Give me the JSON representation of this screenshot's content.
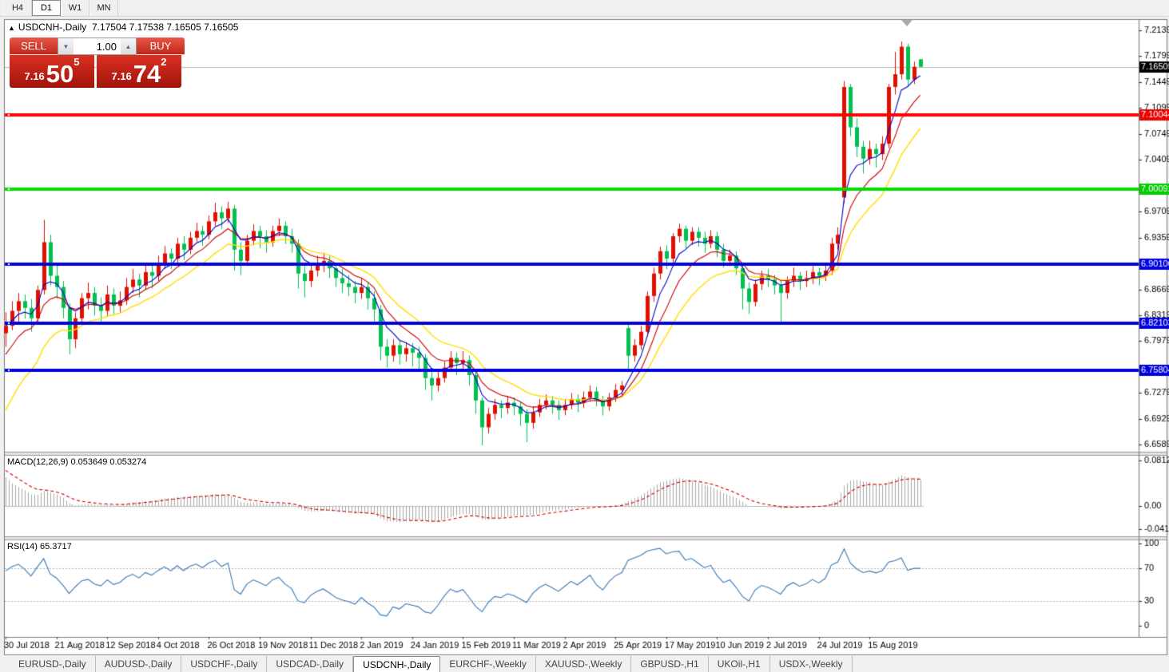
{
  "toolbar": {
    "timeframes": [
      {
        "label": "H4",
        "active": false
      },
      {
        "label": "D1",
        "active": true
      },
      {
        "label": "W1",
        "active": false
      },
      {
        "label": "MN",
        "active": false
      }
    ]
  },
  "chart": {
    "collapse_arrow": "▲",
    "title_symbol": "USDCNH-,Daily",
    "title_ohlc": "7.17504 7.17538 7.16505 7.16505",
    "trade_panel": {
      "sell_label": "SELL",
      "buy_label": "BUY",
      "volume": "1.00",
      "spin_down_icon": "▼",
      "spin_up_icon": "▲",
      "sell": {
        "prefix": "7.16",
        "big": "50",
        "sup": "5"
      },
      "buy": {
        "prefix": "7.16",
        "big": "74",
        "sup": "2"
      }
    },
    "macd_label": "MACD(12,26,9) 0.053649 0.053274",
    "rsi_label": "RSI(14) 65.3717",
    "icons": {
      "scroll_marker": "triangle-down"
    }
  },
  "chart_data": {
    "type": "candlestick",
    "symbol": "USDCNH-",
    "timeframe": "Daily",
    "ylim": [
      6.6493,
      7.2278
    ],
    "y_ticks": [
      "7.21390",
      "7.17990",
      "7.14490",
      "7.10990",
      "7.07490",
      "7.04090",
      "6.97090",
      "6.93590",
      "6.86690",
      "6.83190",
      "6.79790",
      "6.72790",
      "6.69290",
      "6.65890"
    ],
    "badges": [
      {
        "price": 7.16505,
        "label": "7.16505",
        "color": "#000000"
      },
      {
        "price": 7.10044,
        "label": "7.10044",
        "color": "#ee0000"
      },
      {
        "price": 7.00092,
        "label": "7.00092",
        "color": "#00cc00"
      },
      {
        "price": 6.901,
        "label": "6.90100",
        "color": "#0000dd"
      },
      {
        "price": 6.82103,
        "label": "6.82103",
        "color": "#0000dd"
      },
      {
        "price": 6.75804,
        "label": "6.75804",
        "color": "#0000dd"
      }
    ],
    "hlines": [
      {
        "price": 7.10044,
        "color": "#ff0000",
        "width": 4
      },
      {
        "price": 7.00092,
        "color": "#00e000",
        "width": 4
      },
      {
        "price": 6.901,
        "color": "#0000e0",
        "width": 4
      },
      {
        "price": 6.82103,
        "color": "#0000e0",
        "width": 4
      },
      {
        "price": 6.75804,
        "color": "#0000e0",
        "width": 4
      }
    ],
    "current_price": 7.16505,
    "x_labels": [
      "30 Jul 2018",
      "21 Aug 2018",
      "12 Sep 2018",
      "4 Oct 2018",
      "26 Oct 2018",
      "19 Nov 2018",
      "11 Dec 2018",
      "2 Jan 2019",
      "24 Jan 2019",
      "15 Feb 2019",
      "11 Mar 2019",
      "2 Apr 2019",
      "25 Apr 2019",
      "17 May 2019",
      "10 Jun 2019",
      "2 Jul 2019",
      "24 Jul 2019",
      "15 Aug 2019"
    ],
    "x_label_step": 8,
    "colors": {
      "bull": "#e01000",
      "bear": "#00c050",
      "ma_fast": "#0000cc",
      "ma_mid": "#cc0000",
      "ma_slow": "#ffe000",
      "hist": "#a8a8a8",
      "signal": "#cc0000",
      "rsi": "#3a78b5",
      "current_line": "#b8b8b8"
    },
    "indicators": {
      "macd": {
        "name": "MACD",
        "params": "12,26,9",
        "main_value": 0.053649,
        "signal_value": 0.053274,
        "y_ticks": [
          "0.081265",
          "0.00",
          "-0.041412"
        ],
        "ylim": [
          -0.0542,
          0.0898
        ]
      },
      "rsi": {
        "name": "RSI",
        "params": "14",
        "value": 65.3717,
        "y_ticks": [
          "100",
          "70",
          "30",
          "0"
        ],
        "levels": [
          70,
          30
        ]
      }
    },
    "ohlc": [
      [
        6.808,
        6.836,
        6.79,
        6.818
      ],
      [
        6.818,
        6.851,
        6.812,
        6.838
      ],
      [
        6.838,
        6.862,
        6.822,
        6.851
      ],
      [
        6.851,
        6.86,
        6.828,
        6.842
      ],
      [
        6.842,
        6.854,
        6.81,
        6.828
      ],
      [
        6.828,
        6.872,
        6.824,
        6.866
      ],
      [
        6.866,
        6.96,
        6.86,
        6.93
      ],
      [
        6.93,
        6.94,
        6.872,
        6.885
      ],
      [
        6.885,
        6.902,
        6.855,
        6.87
      ],
      [
        6.87,
        6.878,
        6.828,
        6.842
      ],
      [
        6.842,
        6.848,
        6.78,
        6.8
      ],
      [
        6.8,
        6.836,
        6.788,
        6.828
      ],
      [
        6.828,
        6.862,
        6.82,
        6.855
      ],
      [
        6.855,
        6.876,
        6.84,
        6.862
      ],
      [
        6.862,
        6.87,
        6.832,
        6.845
      ],
      [
        6.845,
        6.856,
        6.822,
        6.838
      ],
      [
        6.838,
        6.872,
        6.83,
        6.86
      ],
      [
        6.86,
        6.868,
        6.834,
        6.845
      ],
      [
        6.845,
        6.864,
        6.836,
        6.852
      ],
      [
        6.852,
        6.882,
        6.846,
        6.87
      ],
      [
        6.87,
        6.894,
        6.862,
        6.88
      ],
      [
        6.88,
        6.888,
        6.856,
        6.872
      ],
      [
        6.872,
        6.902,
        6.866,
        6.89
      ],
      [
        6.89,
        6.9,
        6.868,
        6.885
      ],
      [
        6.885,
        6.912,
        6.878,
        6.9
      ],
      [
        6.9,
        6.925,
        6.894,
        6.915
      ],
      [
        6.915,
        6.922,
        6.894,
        6.908
      ],
      [
        6.908,
        6.936,
        6.902,
        6.928
      ],
      [
        6.928,
        6.938,
        6.906,
        6.92
      ],
      [
        6.92,
        6.944,
        6.914,
        6.936
      ],
      [
        6.936,
        6.956,
        6.93,
        6.945
      ],
      [
        6.945,
        6.952,
        6.925,
        6.94
      ],
      [
        6.94,
        6.966,
        6.934,
        6.958
      ],
      [
        6.958,
        6.983,
        6.952,
        6.97
      ],
      [
        6.97,
        6.978,
        6.948,
        6.962
      ],
      [
        6.962,
        6.984,
        6.956,
        6.975
      ],
      [
        6.975,
        6.98,
        6.892,
        6.92
      ],
      [
        6.92,
        6.93,
        6.886,
        6.905
      ],
      [
        6.905,
        6.94,
        6.9,
        6.932
      ],
      [
        6.932,
        6.954,
        6.926,
        6.945
      ],
      [
        6.945,
        6.952,
        6.922,
        6.938
      ],
      [
        6.938,
        6.946,
        6.916,
        6.93
      ],
      [
        6.93,
        6.952,
        6.924,
        6.945
      ],
      [
        6.945,
        6.962,
        6.938,
        6.952
      ],
      [
        6.952,
        6.958,
        6.928,
        6.938
      ],
      [
        6.938,
        6.948,
        6.916,
        6.928
      ],
      [
        6.928,
        6.934,
        6.868,
        6.888
      ],
      [
        6.888,
        6.898,
        6.856,
        6.878
      ],
      [
        6.878,
        6.9,
        6.87,
        6.892
      ],
      [
        6.892,
        6.912,
        6.884,
        6.9
      ],
      [
        6.9,
        6.916,
        6.89,
        6.905
      ],
      [
        6.905,
        6.912,
        6.882,
        6.895
      ],
      [
        6.895,
        6.902,
        6.87,
        6.882
      ],
      [
        6.882,
        6.894,
        6.862,
        6.875
      ],
      [
        6.875,
        6.886,
        6.858,
        6.87
      ],
      [
        6.87,
        6.878,
        6.848,
        6.862
      ],
      [
        6.862,
        6.882,
        6.854,
        6.87
      ],
      [
        6.87,
        6.876,
        6.84,
        6.855
      ],
      [
        6.855,
        6.864,
        6.824,
        6.84
      ],
      [
        6.84,
        6.846,
        6.772,
        6.79
      ],
      [
        6.79,
        6.8,
        6.762,
        6.778
      ],
      [
        6.778,
        6.8,
        6.77,
        6.792
      ],
      [
        6.792,
        6.798,
        6.766,
        6.78
      ],
      [
        6.78,
        6.796,
        6.77,
        6.788
      ],
      [
        6.788,
        6.795,
        6.764,
        6.782
      ],
      [
        6.782,
        6.79,
        6.758,
        6.775
      ],
      [
        6.775,
        6.78,
        6.732,
        6.748
      ],
      [
        6.748,
        6.756,
        6.718,
        6.738
      ],
      [
        6.738,
        6.758,
        6.73,
        6.748
      ],
      [
        6.748,
        6.77,
        6.742,
        6.762
      ],
      [
        6.762,
        6.784,
        6.756,
        6.775
      ],
      [
        6.775,
        6.782,
        6.752,
        6.768
      ],
      [
        6.768,
        6.784,
        6.76,
        6.772
      ],
      [
        6.772,
        6.778,
        6.738,
        6.752
      ],
      [
        6.752,
        6.758,
        6.7,
        6.718
      ],
      [
        6.718,
        6.722,
        6.658,
        6.682
      ],
      [
        6.682,
        6.708,
        6.674,
        6.7
      ],
      [
        6.7,
        6.72,
        6.692,
        6.712
      ],
      [
        6.712,
        6.718,
        6.694,
        6.708
      ],
      [
        6.708,
        6.724,
        6.7,
        6.715
      ],
      [
        6.715,
        6.722,
        6.698,
        6.71
      ],
      [
        6.71,
        6.716,
        6.684,
        6.7
      ],
      [
        6.7,
        6.706,
        6.662,
        6.688
      ],
      [
        6.688,
        6.71,
        6.68,
        6.702
      ],
      [
        6.702,
        6.72,
        6.696,
        6.712
      ],
      [
        6.712,
        6.726,
        6.706,
        6.718
      ],
      [
        6.718,
        6.724,
        6.7,
        6.712
      ],
      [
        6.712,
        6.718,
        6.692,
        6.705
      ],
      [
        6.705,
        6.72,
        6.698,
        6.712
      ],
      [
        6.712,
        6.728,
        6.706,
        6.72
      ],
      [
        6.72,
        6.726,
        6.702,
        6.715
      ],
      [
        6.715,
        6.73,
        6.708,
        6.722
      ],
      [
        6.722,
        6.738,
        6.716,
        6.73
      ],
      [
        6.73,
        6.736,
        6.71,
        6.718
      ],
      [
        6.718,
        6.724,
        6.698,
        6.71
      ],
      [
        6.71,
        6.728,
        6.704,
        6.722
      ],
      [
        6.722,
        6.74,
        6.716,
        6.732
      ],
      [
        6.732,
        6.744,
        6.724,
        6.738
      ],
      [
        6.815,
        6.822,
        6.756,
        6.778
      ],
      [
        6.778,
        6.8,
        6.77,
        6.792
      ],
      [
        6.792,
        6.818,
        6.786,
        6.81
      ],
      [
        6.81,
        6.864,
        6.804,
        6.858
      ],
      [
        6.858,
        6.896,
        6.85,
        6.888
      ],
      [
        6.888,
        6.924,
        6.88,
        6.918
      ],
      [
        6.918,
        6.926,
        6.894,
        6.908
      ],
      [
        6.908,
        6.942,
        6.902,
        6.938
      ],
      [
        6.938,
        6.955,
        6.93,
        6.948
      ],
      [
        6.948,
        6.952,
        6.922,
        6.932
      ],
      [
        6.932,
        6.95,
        6.926,
        6.944
      ],
      [
        6.944,
        6.95,
        6.924,
        6.936
      ],
      [
        6.936,
        6.944,
        6.916,
        6.928
      ],
      [
        6.928,
        6.946,
        6.922,
        6.938
      ],
      [
        6.938,
        6.944,
        6.91,
        6.92
      ],
      [
        6.92,
        6.928,
        6.896,
        6.905
      ],
      [
        6.905,
        6.92,
        6.898,
        6.912
      ],
      [
        6.912,
        6.918,
        6.886,
        6.895
      ],
      [
        6.895,
        6.9,
        6.84,
        6.868
      ],
      [
        6.868,
        6.876,
        6.834,
        6.85
      ],
      [
        6.85,
        6.88,
        6.844,
        6.874
      ],
      [
        6.874,
        6.892,
        6.866,
        6.885
      ],
      [
        6.885,
        6.894,
        6.87,
        6.88
      ],
      [
        6.88,
        6.886,
        6.86,
        6.872
      ],
      [
        6.872,
        6.878,
        6.822,
        6.862
      ],
      [
        6.862,
        6.884,
        6.854,
        6.878
      ],
      [
        6.878,
        6.896,
        6.87,
        6.885
      ],
      [
        6.885,
        6.89,
        6.866,
        6.878
      ],
      [
        6.878,
        6.892,
        6.87,
        6.882
      ],
      [
        6.882,
        6.898,
        6.874,
        6.89
      ],
      [
        6.89,
        6.896,
        6.872,
        6.885
      ],
      [
        6.885,
        6.902,
        6.878,
        6.892
      ],
      [
        6.892,
        6.936,
        6.886,
        6.928
      ],
      [
        6.928,
        6.95,
        6.92,
        6.94
      ],
      [
        6.99,
        7.146,
        6.982,
        7.138
      ],
      [
        7.138,
        7.142,
        7.072,
        7.084
      ],
      [
        7.084,
        7.096,
        7.044,
        7.058
      ],
      [
        7.058,
        7.066,
        7.022,
        7.042
      ],
      [
        7.042,
        7.066,
        7.034,
        7.055
      ],
      [
        7.055,
        7.062,
        7.03,
        7.048
      ],
      [
        7.048,
        7.072,
        7.04,
        7.062
      ],
      [
        7.062,
        7.142,
        7.056,
        7.138
      ],
      [
        7.138,
        7.185,
        7.128,
        7.155
      ],
      [
        7.155,
        7.199,
        7.148,
        7.192
      ],
      [
        7.192,
        7.196,
        7.138,
        7.148
      ],
      [
        7.148,
        7.172,
        7.142,
        7.165
      ],
      [
        7.17504,
        7.17538,
        7.16505,
        7.16505
      ]
    ]
  },
  "tabs": [
    {
      "label": "EURUSD-,Daily",
      "active": false
    },
    {
      "label": "AUDUSD-,Daily",
      "active": false
    },
    {
      "label": "USDCHF-,Daily",
      "active": false
    },
    {
      "label": "USDCAD-,Daily",
      "active": false
    },
    {
      "label": "USDCNH-,Daily",
      "active": true
    },
    {
      "label": "EURCHF-,Weekly",
      "active": false
    },
    {
      "label": "XAUUSD-,Weekly",
      "active": false
    },
    {
      "label": "GBPUSD-,H1",
      "active": false
    },
    {
      "label": "UKOil-,H1",
      "active": false
    },
    {
      "label": "USDX-,Weekly",
      "active": false
    }
  ]
}
